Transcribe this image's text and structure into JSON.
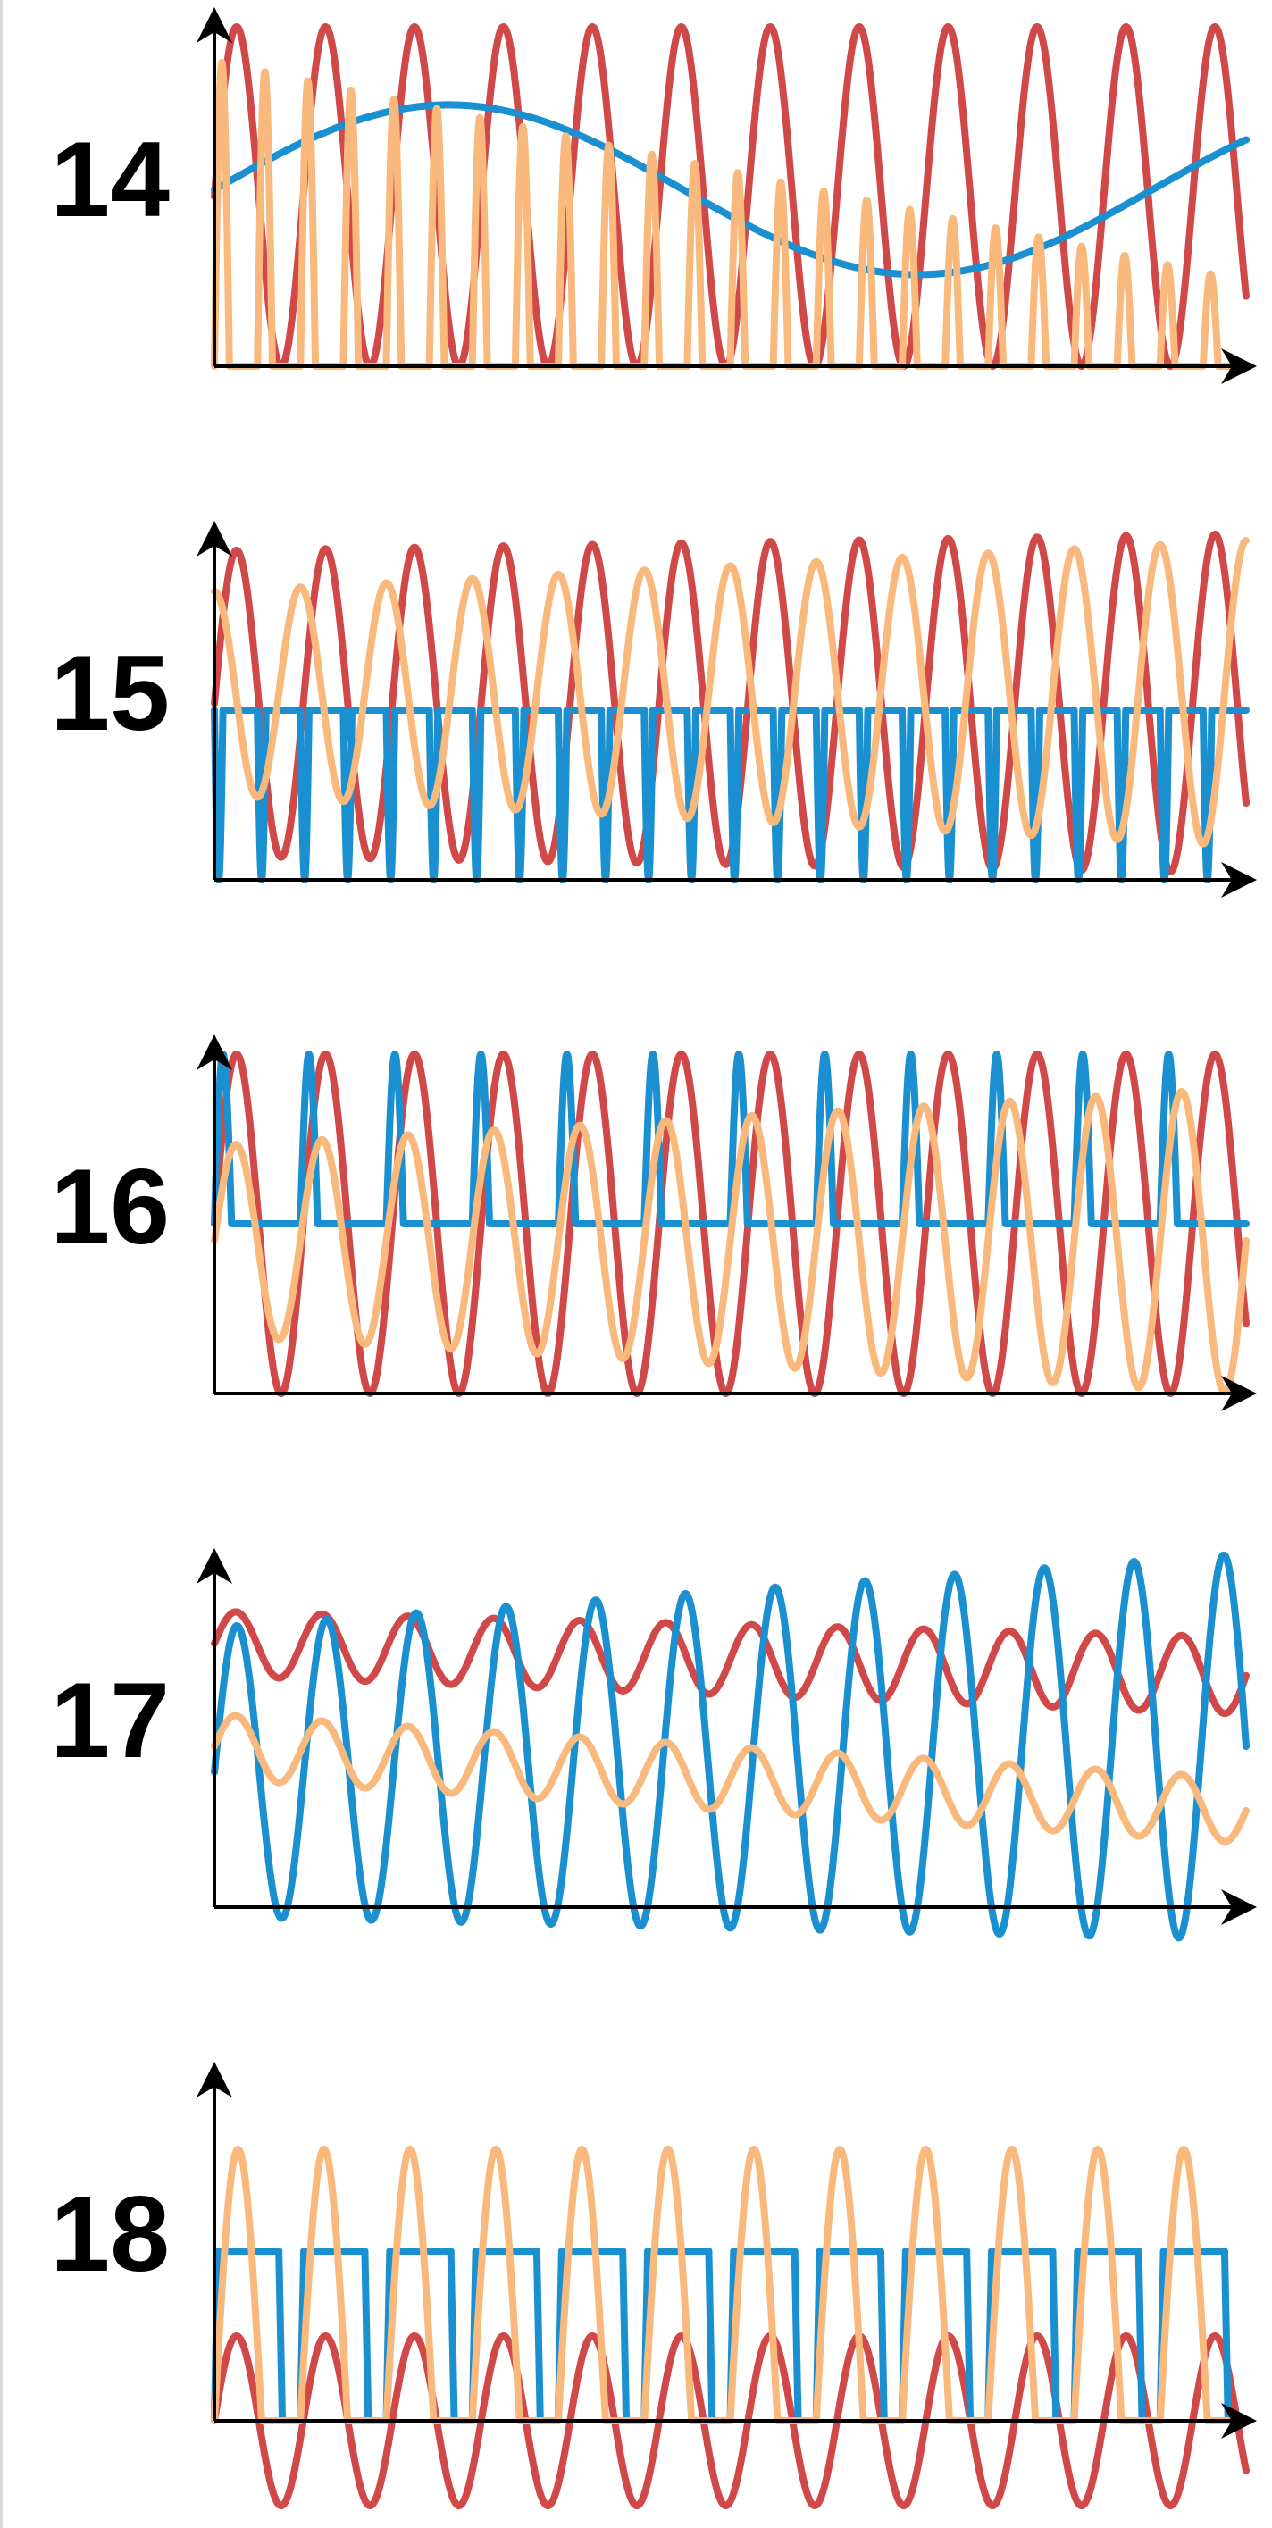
{
  "colors": {
    "red": "#d04848",
    "blue": "#1b90d0",
    "orange": "#f9b87c",
    "axis": "#000000"
  },
  "chart_data": [
    {
      "type": "line",
      "panel_label": "14",
      "x": {
        "min": 0,
        "max": 12
      },
      "y": {
        "min": 0,
        "max": 1
      },
      "series": [
        {
          "color_key": "red",
          "kind": "sine",
          "cycles": 11.6,
          "mid": 0.5,
          "amp": 0.5,
          "start_phase": 0,
          "amp_end": 0.5
        },
        {
          "color_key": "blue",
          "kind": "sine",
          "cycles": 1.1,
          "mid": 0.52,
          "amp": 0.25,
          "start_phase": 0,
          "amp_end": 0.25
        },
        {
          "color_key": "orange",
          "kind": "pulses",
          "cycles": 24,
          "base": 0,
          "top_start": 0.9,
          "top_end": 0.25,
          "duty": 0.35
        }
      ]
    },
    {
      "type": "line",
      "panel_label": "15",
      "x": {
        "min": 0,
        "max": 12
      },
      "y": {
        "min": 0,
        "max": 1
      },
      "series": [
        {
          "color_key": "red",
          "kind": "sine",
          "cycles": 11.6,
          "mid": 0.52,
          "amp": 0.45,
          "start_phase": 0,
          "amp_end": 0.5
        },
        {
          "color_key": "blue",
          "kind": "dips",
          "cycles": 24,
          "base": 0.5,
          "low": 0,
          "duty": 0.2
        },
        {
          "color_key": "orange",
          "kind": "sine",
          "cycles": 12,
          "mid": 0.55,
          "amp": 0.3,
          "start_phase": 0.25,
          "amp_end": 0.45
        }
      ]
    },
    {
      "type": "line",
      "panel_label": "16",
      "x": {
        "min": 0,
        "max": 12
      },
      "y": {
        "min": 0,
        "max": 1
      },
      "series": [
        {
          "color_key": "red",
          "kind": "sine",
          "cycles": 11.6,
          "mid": 0.5,
          "amp": 0.5,
          "start_phase": 0,
          "amp_end": 0.5
        },
        {
          "color_key": "blue",
          "kind": "spikes",
          "cycles": 12,
          "base": 0.5,
          "high": 1.0,
          "duty": 0.2
        },
        {
          "color_key": "orange",
          "kind": "sine",
          "cycles": 12,
          "mid": 0.45,
          "amp": 0.28,
          "start_phase": 0,
          "amp_end": 0.45
        }
      ]
    },
    {
      "type": "line",
      "panel_label": "17",
      "x": {
        "min": 0,
        "max": 12
      },
      "y": {
        "min": 0,
        "max": 1
      },
      "series": [
        {
          "color_key": "red",
          "kind": "sine",
          "cycles": 12,
          "mid": 0.82,
          "amp": 0.1,
          "start_phase": 0,
          "amp_end": 0.12,
          "mid_end": 0.72
        },
        {
          "color_key": "blue",
          "kind": "sine",
          "cycles": 11.5,
          "mid": 0.42,
          "amp": 0.45,
          "start_phase": 0,
          "amp_end": 0.6,
          "mid_end": 0.5
        },
        {
          "color_key": "orange",
          "kind": "sine",
          "cycles": 12,
          "mid": 0.5,
          "amp": 0.1,
          "start_phase": 0,
          "amp_end": 0.1,
          "mid_end": 0.3
        }
      ]
    },
    {
      "type": "line",
      "panel_label": "18",
      "x": {
        "min": 0,
        "max": 12
      },
      "y": {
        "min": 0,
        "max": 1
      },
      "series": [
        {
          "color_key": "red",
          "kind": "sine",
          "cycles": 11.6,
          "mid": 0,
          "amp": 0.5,
          "start_phase": 0,
          "amp_end": 0.5
        },
        {
          "color_key": "blue",
          "kind": "square",
          "cycles": 12,
          "base": 0,
          "high": 1,
          "duty": 0.75
        },
        {
          "color_key": "orange",
          "kind": "raised",
          "cycles": 12,
          "base": 0,
          "high": 1.6,
          "duty": 0.55
        }
      ]
    }
  ]
}
